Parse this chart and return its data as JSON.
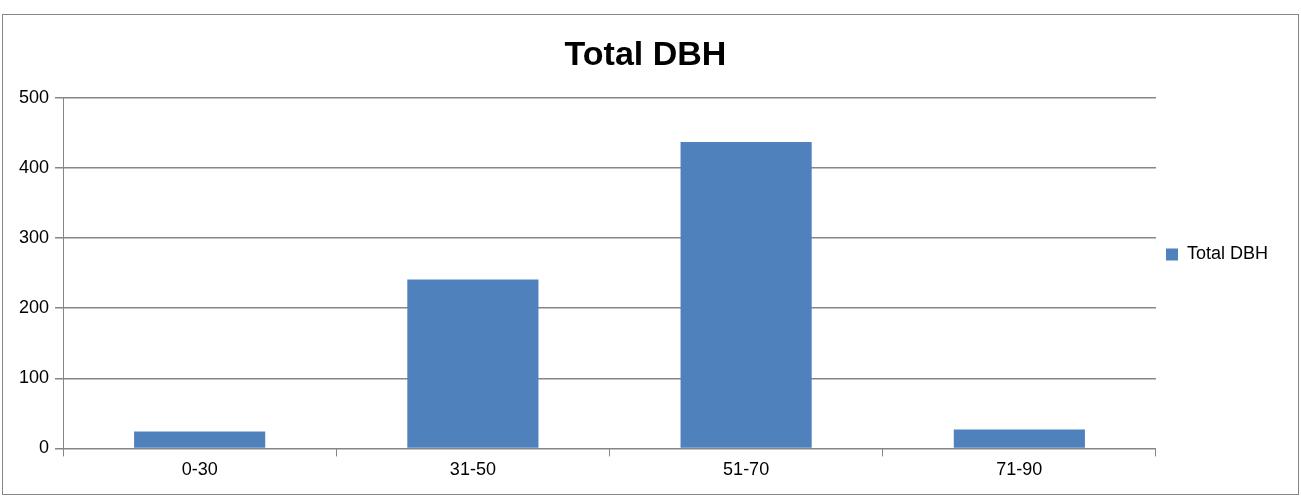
{
  "chart_data": {
    "type": "bar",
    "title": "Total DBH",
    "categories": [
      "0-30",
      "31-50",
      "51-70",
      "71-90"
    ],
    "series": [
      {
        "name": "Total DBH",
        "color": "#4f81bd",
        "values": [
          24,
          241,
          437,
          27
        ]
      }
    ],
    "ylim": [
      0,
      500
    ],
    "yticks": [
      0,
      100,
      200,
      300,
      400,
      500
    ],
    "grid": "y",
    "legend": "right"
  }
}
